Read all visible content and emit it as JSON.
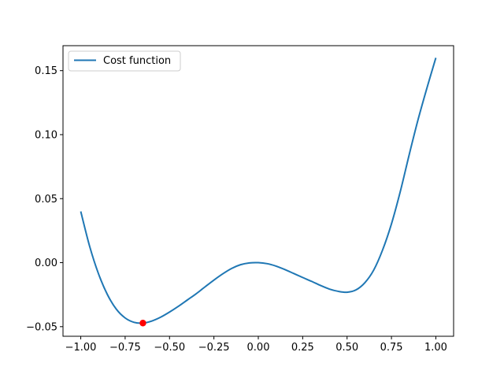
{
  "chart_data": {
    "type": "line",
    "xlim": [
      -1.1,
      1.1
    ],
    "ylim": [
      -0.0575,
      0.1695
    ],
    "x_ticks": [
      -1.0,
      -0.75,
      -0.5,
      -0.25,
      0.0,
      0.25,
      0.5,
      0.75,
      1.0
    ],
    "x_tick_labels": [
      "−1.00",
      "−0.75",
      "−0.50",
      "−0.25",
      "0.00",
      "0.25",
      "0.50",
      "0.75",
      "1.00"
    ],
    "y_ticks": [
      -0.05,
      0.0,
      0.05,
      0.1,
      0.15
    ],
    "y_tick_labels": [
      "−0.05",
      "0.00",
      "0.05",
      "0.10",
      "0.15"
    ],
    "grid": false,
    "legend": {
      "placement": "top-left"
    },
    "series": [
      {
        "name": "Cost function",
        "color": "#1f77b4",
        "x": [
          -1.0,
          -0.95,
          -0.9,
          -0.85,
          -0.8,
          -0.75,
          -0.7,
          -0.65,
          -0.6,
          -0.55,
          -0.5,
          -0.45,
          -0.4,
          -0.35,
          -0.3,
          -0.25,
          -0.2,
          -0.15,
          -0.1,
          -0.05,
          0.0,
          0.05,
          0.1,
          0.15,
          0.2,
          0.25,
          0.3,
          0.35,
          0.4,
          0.45,
          0.5,
          0.55,
          0.6,
          0.65,
          0.7,
          0.75,
          0.8,
          0.85,
          0.9,
          0.95,
          1.0
        ],
        "y": [
          0.04,
          0.0128,
          -0.0087,
          -0.0249,
          -0.0363,
          -0.0432,
          -0.0466,
          -0.0472,
          -0.0456,
          -0.0426,
          -0.0386,
          -0.0341,
          -0.0292,
          -0.0243,
          -0.0189,
          -0.0136,
          -0.0087,
          -0.0045,
          -0.0016,
          -0.0002,
          0.0,
          -0.0008,
          -0.0027,
          -0.0054,
          -0.0085,
          -0.0116,
          -0.0146,
          -0.0178,
          -0.0206,
          -0.0224,
          -0.0231,
          -0.0213,
          -0.0157,
          -0.0058,
          0.0099,
          0.0303,
          0.0557,
          0.0844,
          0.1118,
          0.1365,
          0.16
        ]
      },
      {
        "name": "",
        "type": "scatter",
        "color": "#ff0000",
        "x": [
          -0.65
        ],
        "y": [
          -0.0472
        ]
      }
    ]
  }
}
